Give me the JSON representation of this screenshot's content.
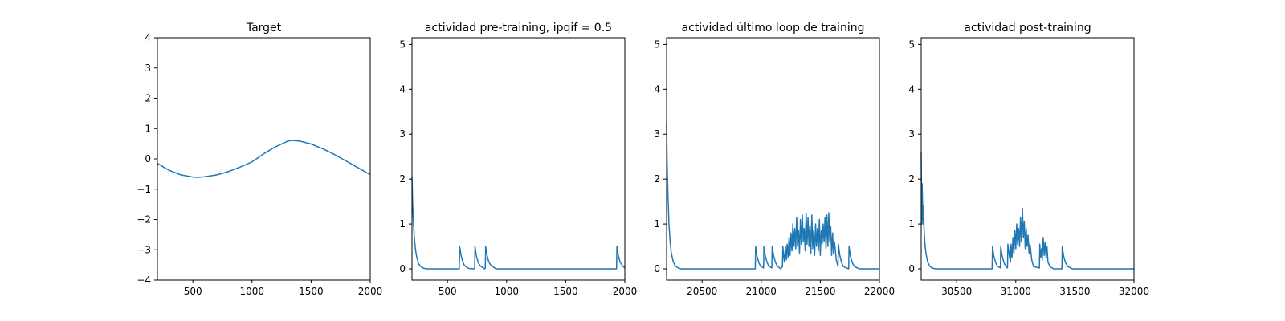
{
  "chart_data": [
    {
      "type": "line",
      "title": "Target",
      "xlim": [
        200,
        2000
      ],
      "ylim": [
        -4,
        4
      ],
      "xticks": [
        500,
        1000,
        1500,
        2000
      ],
      "yticks": [
        -4,
        -3,
        -2,
        -1,
        0,
        1,
        2,
        3,
        4
      ],
      "color": "#1f77b4",
      "series": [
        {
          "x": [
            200,
            300,
            400,
            500,
            540,
            600,
            700,
            800,
            900,
            1000,
            1100,
            1200,
            1300,
            1330,
            1400,
            1500,
            1600,
            1700,
            1800,
            1900,
            2000
          ],
          "y": [
            -0.15,
            -0.38,
            -0.53,
            -0.6,
            -0.61,
            -0.59,
            -0.53,
            -0.42,
            -0.27,
            -0.1,
            0.17,
            0.4,
            0.58,
            0.61,
            0.59,
            0.49,
            0.33,
            0.14,
            -0.08,
            -0.3,
            -0.52
          ]
        }
      ]
    },
    {
      "type": "line",
      "title": "actividad pre-training, ipqif = 0.5",
      "xlim": [
        200,
        2000
      ],
      "ylim": [
        -0.25,
        5.15
      ],
      "xticks": [
        500,
        1000,
        1500,
        2000
      ],
      "yticks": [
        0,
        1,
        2,
        3,
        4,
        5
      ],
      "color": "#1f77b4",
      "series": [
        {
          "x": [
            200,
            205,
            212,
            220,
            230,
            240,
            255,
            270,
            290,
            320,
            600,
            603,
            615,
            630,
            645,
            680,
            730,
            733,
            745,
            760,
            780,
            815,
            820,
            823,
            835,
            850,
            870,
            910,
            1930,
            1933,
            1945,
            1960,
            1980,
            2000
          ],
          "y": [
            2.05,
            1.5,
            1.05,
            0.68,
            0.42,
            0.26,
            0.12,
            0.06,
            0.02,
            0.0,
            0.0,
            0.5,
            0.3,
            0.15,
            0.07,
            0.01,
            0.0,
            0.5,
            0.28,
            0.14,
            0.06,
            0.0,
            0.02,
            0.5,
            0.3,
            0.15,
            0.07,
            0.0,
            0.0,
            0.5,
            0.3,
            0.15,
            0.07,
            0.02
          ]
        }
      ]
    },
    {
      "type": "line",
      "title": "actividad último loop de training",
      "xlim": [
        20200,
        22000
      ],
      "ylim": [
        -0.25,
        5.15
      ],
      "xticks": [
        20500,
        21000,
        21500,
        22000
      ],
      "yticks": [
        0,
        1,
        2,
        3,
        4,
        5
      ],
      "color": "#1f77b4",
      "series": [
        {
          "x": [
            20200,
            20205,
            20212,
            20220,
            20230,
            20240,
            20255,
            20270,
            20290,
            20320,
            20950,
            20953,
            20965,
            20980,
            20995,
            21020,
            21023,
            21035,
            21050,
            21065,
            21090,
            21093,
            21105,
            21120,
            21135,
            21165,
            21180,
            21183,
            21190,
            21197,
            21205,
            21212,
            21220,
            21228,
            21236,
            21244,
            21252,
            21260,
            21268,
            21276,
            21284,
            21292,
            21300,
            21308,
            21316,
            21324,
            21332,
            21340,
            21348,
            21356,
            21364,
            21372,
            21380,
            21388,
            21396,
            21404,
            21412,
            21420,
            21428,
            21436,
            21444,
            21452,
            21460,
            21468,
            21476,
            21484,
            21492,
            21500,
            21508,
            21516,
            21524,
            21532,
            21540,
            21548,
            21556,
            21564,
            21572,
            21580,
            21588,
            21596,
            21604,
            21612,
            21620,
            21635,
            21650,
            21653,
            21665,
            21680,
            21695,
            21740,
            21743,
            21755,
            21770,
            21790,
            21830,
            22000
          ],
          "y": [
            3.25,
            2.3,
            1.6,
            1.0,
            0.6,
            0.35,
            0.17,
            0.08,
            0.03,
            0.0,
            0.0,
            0.5,
            0.28,
            0.14,
            0.06,
            0.02,
            0.5,
            0.28,
            0.14,
            0.06,
            0.02,
            0.5,
            0.3,
            0.15,
            0.07,
            0.0,
            0.05,
            0.5,
            0.3,
            0.15,
            0.5,
            0.2,
            0.55,
            0.25,
            0.7,
            0.3,
            0.8,
            0.4,
            1.0,
            0.5,
            0.9,
            0.45,
            1.15,
            0.5,
            0.85,
            0.35,
            1.1,
            0.55,
            1.2,
            0.6,
            0.9,
            0.4,
            1.25,
            0.55,
            1.15,
            0.5,
            0.95,
            0.35,
            1.2,
            0.45,
            0.85,
            0.3,
            1.0,
            0.5,
            0.9,
            0.4,
            1.1,
            0.3,
            0.85,
            0.55,
            1.0,
            0.6,
            1.15,
            0.45,
            1.2,
            0.5,
            1.25,
            0.6,
            0.95,
            0.3,
            0.8,
            0.35,
            0.6,
            0.2,
            0.05,
            0.55,
            0.3,
            0.14,
            0.05,
            0.0,
            0.5,
            0.28,
            0.14,
            0.05,
            0.0,
            0.0
          ]
        }
      ]
    },
    {
      "type": "line",
      "title": "actividad post-training",
      "xlim": [
        30200,
        32000
      ],
      "ylim": [
        -0.25,
        5.15
      ],
      "xticks": [
        30500,
        31000,
        31500,
        32000
      ],
      "yticks": [
        0,
        1,
        2,
        3,
        4,
        5
      ],
      "color": "#1f77b4",
      "series": [
        {
          "x": [
            30200,
            30204,
            30208,
            30212,
            30216,
            30220,
            30224,
            30230,
            30240,
            30255,
            30270,
            30290,
            30320,
            30800,
            30803,
            30815,
            30830,
            30845,
            30870,
            30873,
            30885,
            30900,
            30915,
            30930,
            30933,
            30945,
            30955,
            30960,
            30968,
            30976,
            30984,
            30992,
            31000,
            31008,
            31016,
            31024,
            31032,
            31040,
            31048,
            31056,
            31064,
            31072,
            31080,
            31088,
            31096,
            31104,
            31112,
            31120,
            31135,
            31150,
            31200,
            31203,
            31210,
            31218,
            31224,
            31232,
            31240,
            31248,
            31256,
            31264,
            31272,
            31290,
            31320,
            31390,
            31393,
            31405,
            31420,
            31440,
            31480,
            32000
          ],
          "y": [
            2.6,
            1.0,
            1.9,
            1.4,
            1.0,
            1.4,
            0.9,
            0.6,
            0.35,
            0.15,
            0.07,
            0.02,
            0.0,
            0.0,
            0.5,
            0.28,
            0.14,
            0.06,
            0.02,
            0.5,
            0.28,
            0.14,
            0.06,
            0.02,
            0.55,
            0.3,
            0.15,
            0.55,
            0.25,
            0.7,
            0.35,
            0.85,
            0.45,
            1.0,
            0.55,
            0.9,
            0.5,
            1.15,
            0.6,
            1.35,
            0.7,
            1.05,
            0.45,
            0.9,
            0.5,
            0.75,
            0.35,
            0.55,
            0.2,
            0.05,
            0.02,
            0.55,
            0.25,
            0.45,
            0.2,
            0.7,
            0.3,
            0.6,
            0.25,
            0.5,
            0.15,
            0.05,
            0.0,
            0.0,
            0.5,
            0.28,
            0.14,
            0.05,
            0.0,
            0.0
          ]
        }
      ]
    }
  ]
}
